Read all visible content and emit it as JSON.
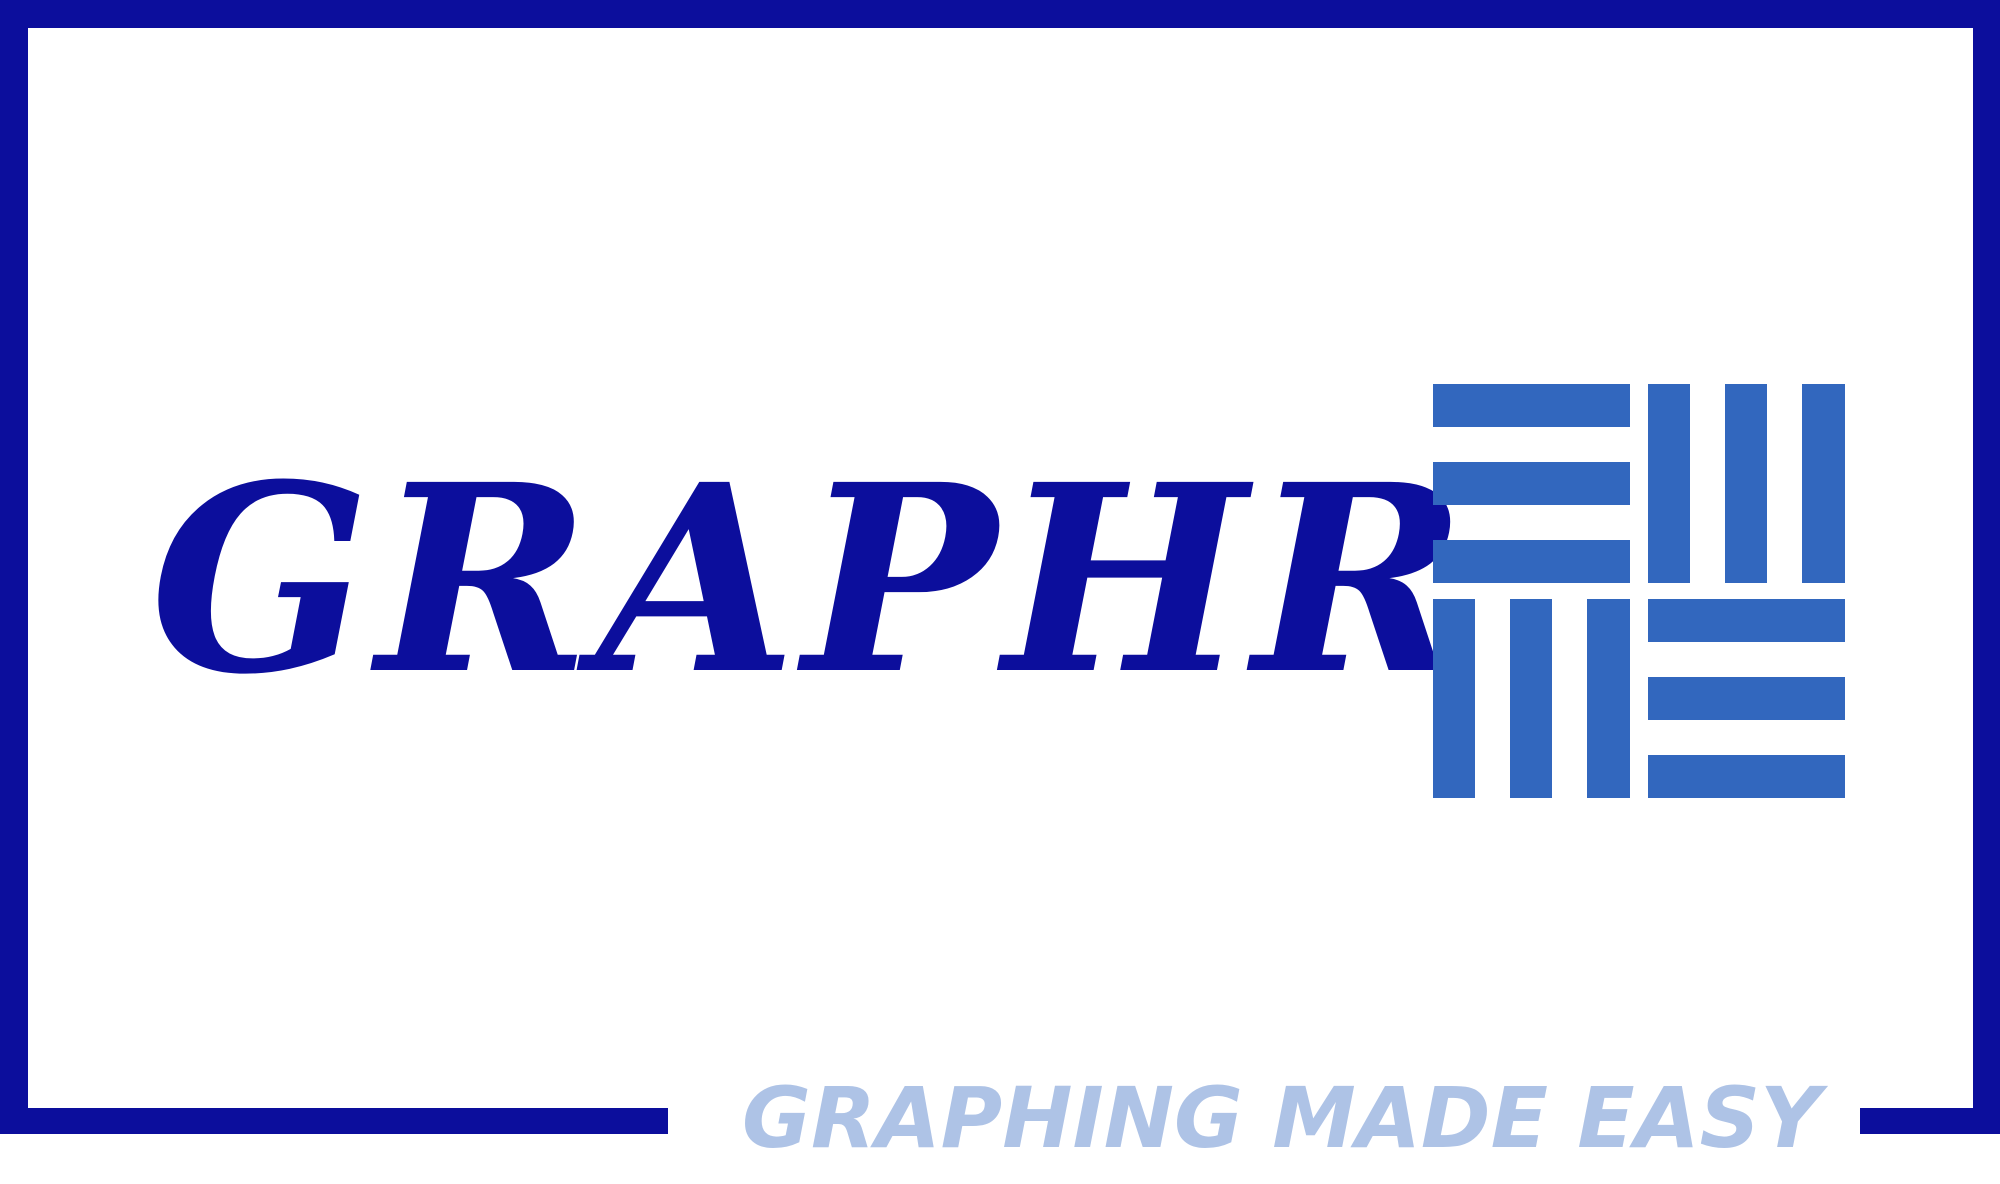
{
  "brand": {
    "name": "GRAPHR",
    "tagline": "GRAPHING MADE EASY"
  },
  "colors": {
    "frame": "#0c0e9c",
    "wordmark": "#0c0e9c",
    "tagline": "#aec3e6",
    "icon": "#3267be",
    "background": "#ffffff"
  },
  "icons": {
    "logo": "woven-grid-icon"
  }
}
